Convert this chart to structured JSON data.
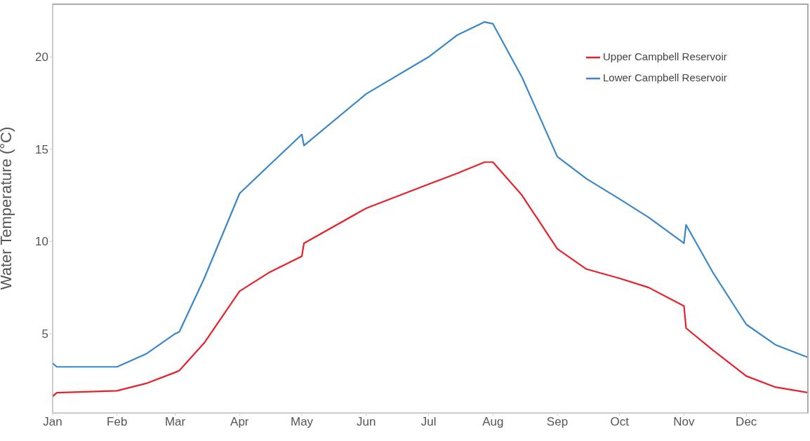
{
  "chart_data": {
    "type": "line",
    "ylabel": "Water Temperature (°C)",
    "x": [
      "--01-01",
      "--01-03",
      "--02-01",
      "--02-15",
      "--03-01",
      "--03-03",
      "--03-15",
      "--04-01",
      "--04-15",
      "--05-01",
      "--05-02",
      "--06-01",
      "--07-01",
      "--07-15",
      "--07-28",
      "--08-01",
      "--08-15",
      "--09-01",
      "--09-15",
      "--10-01",
      "--10-15",
      "--11-01",
      "--11-02",
      "--11-15",
      "--12-01",
      "--12-15",
      "--12-31"
    ],
    "series": [
      {
        "name": "Upper Campbell Reservoir",
        "color": "#e8202a",
        "values": [
          1.6,
          1.8,
          1.9,
          2.3,
          2.9,
          3.0,
          4.5,
          7.3,
          8.3,
          9.2,
          9.9,
          11.8,
          13.1,
          13.7,
          14.3,
          14.3,
          12.5,
          9.6,
          8.5,
          8.0,
          7.5,
          6.5,
          5.3,
          4.1,
          2.7,
          2.1,
          1.8
        ]
      },
      {
        "name": "Lower Campbell Reservoir",
        "color": "#3a87c8",
        "values": [
          3.4,
          3.2,
          3.2,
          3.9,
          5.0,
          5.1,
          8.0,
          12.6,
          14.1,
          15.8,
          15.2,
          18.0,
          20.0,
          21.2,
          21.9,
          21.8,
          18.9,
          14.6,
          13.4,
          12.3,
          11.3,
          9.9,
          10.9,
          8.3,
          5.5,
          4.4,
          3.7
        ]
      }
    ],
    "xlim": [
      "--01-01",
      "--12-31"
    ],
    "xticks": [
      {
        "value": "--01-01",
        "label": "Jan"
      },
      {
        "value": "--02-01",
        "label": "Feb"
      },
      {
        "value": "--03-01",
        "label": "Mar"
      },
      {
        "value": "--04-01",
        "label": "Apr"
      },
      {
        "value": "--05-01",
        "label": "May"
      },
      {
        "value": "--06-01",
        "label": "Jun"
      },
      {
        "value": "--07-01",
        "label": "Jul"
      },
      {
        "value": "--08-01",
        "label": "Aug"
      },
      {
        "value": "--09-01",
        "label": "Sep"
      },
      {
        "value": "--10-01",
        "label": "Oct"
      },
      {
        "value": "--11-01",
        "label": "Nov"
      },
      {
        "value": "--12-01",
        "label": "Dec"
      }
    ],
    "ylim": [
      0.7,
      22.9
    ],
    "yticks": [
      5,
      10,
      15,
      20
    ],
    "grid": false,
    "legend": "top right",
    "marker": "none",
    "line_style": "solid"
  }
}
